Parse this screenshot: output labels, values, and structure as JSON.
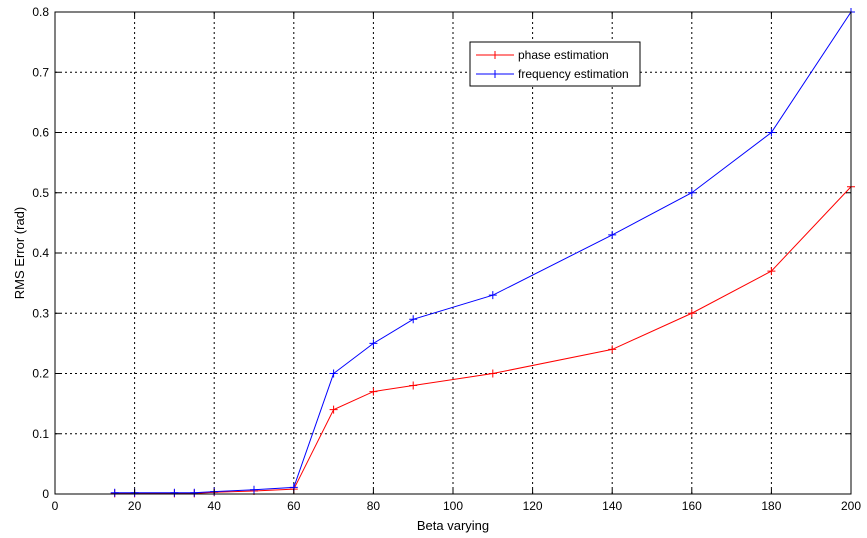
{
  "chart_data": {
    "type": "line",
    "title": "",
    "xlabel": "Beta varying",
    "ylabel": "RMS Error (rad)",
    "xlim": [
      0,
      200
    ],
    "ylim": [
      0,
      0.8
    ],
    "xticks": [
      0,
      20,
      40,
      60,
      80,
      100,
      120,
      140,
      160,
      180,
      200
    ],
    "yticks": [
      0,
      0.1,
      0.2,
      0.3,
      0.4,
      0.5,
      0.6,
      0.7,
      0.8
    ],
    "grid": true,
    "legend_position": "top-center",
    "series": [
      {
        "name": "phase estimation",
        "color": "#ff0000",
        "marker": "plus",
        "x": [
          15,
          20,
          30,
          35,
          40,
          50,
          60,
          70,
          80,
          90,
          110,
          140,
          160,
          180,
          200
        ],
        "y": [
          0.001,
          0.001,
          0.001,
          0.001,
          0.003,
          0.005,
          0.008,
          0.14,
          0.17,
          0.18,
          0.2,
          0.24,
          0.3,
          0.37,
          0.51
        ]
      },
      {
        "name": "frequency estimation",
        "color": "#0000ff",
        "marker": "plus",
        "x": [
          15,
          20,
          30,
          35,
          40,
          50,
          60,
          70,
          80,
          90,
          110,
          140,
          160,
          180,
          200
        ],
        "y": [
          0.002,
          0.002,
          0.002,
          0.002,
          0.004,
          0.007,
          0.011,
          0.2,
          0.25,
          0.29,
          0.33,
          0.43,
          0.5,
          0.6,
          0.8
        ]
      }
    ]
  }
}
